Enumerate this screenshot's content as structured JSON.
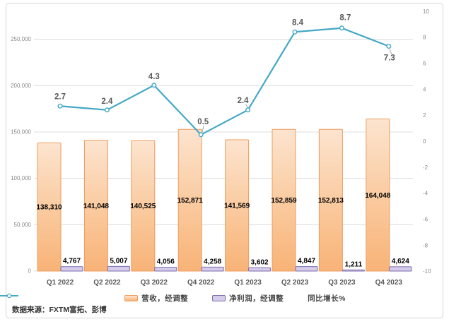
{
  "source_note": "数据来源：FXTM富拓、彭博",
  "colors": {
    "revenue_bar_top": "#fce4cf",
    "revenue_bar_bottom": "#f8b377",
    "revenue_bar_border": "#ee9c5e",
    "profit_bar_fill": "#d4ccea",
    "profit_bar_border": "#7d6dad",
    "yoy_line": "#44a8c6",
    "gridline": "#dcdcdc",
    "leader": "#a6a6a6",
    "frame_border": "#d6d6d6"
  },
  "chart_data": {
    "type": "bar",
    "subtype": "combo-bar-line",
    "grid": true,
    "legend_position": "bottom",
    "categories": [
      "Q1 2022",
      "Q2 2022",
      "Q3 2022",
      "Q4 2022",
      "Q1 2023",
      "Q2 2023",
      "Q3 2023",
      "Q4 2023"
    ],
    "series": [
      {
        "name": "营收，经调整",
        "type": "bar",
        "axis": "left",
        "values": [
          138310,
          141048,
          140525,
          152871,
          141569,
          152859,
          152813,
          164048
        ],
        "labels": [
          "138,310",
          "141,048",
          "140,525",
          "152,871",
          "141,569",
          "152,859",
          "152,813",
          "164,048"
        ]
      },
      {
        "name": "净利润，经调整",
        "type": "bar",
        "axis": "left",
        "values": [
          4767,
          5007,
          4056,
          4258,
          3602,
          4847,
          1211,
          4624
        ],
        "labels": [
          "4,767",
          "5,007",
          "4,056",
          "4,258",
          "3,602",
          "4,847",
          "1,211",
          "4,624"
        ]
      },
      {
        "name": "同比增长%",
        "type": "line",
        "axis": "right",
        "values": [
          2.7,
          2.4,
          4.3,
          0.5,
          2.4,
          8.4,
          8.7,
          7.3
        ],
        "labels": [
          "2.7",
          "2.4",
          "4.3",
          "0.5",
          "2.4",
          "8.4",
          "8.7",
          "7.3"
        ]
      }
    ],
    "left_axis": {
      "min": 0,
      "max": 280000,
      "tick_values": [
        0,
        50000,
        100000,
        150000,
        200000,
        250000
      ],
      "tick_labels": [
        "0",
        "50,000",
        "100,000",
        "150,000",
        "200,000",
        "250,000"
      ]
    },
    "right_axis": {
      "min": -10,
      "max": 10,
      "tick_values": [
        10,
        8,
        6,
        4,
        2,
        0,
        -2,
        -4,
        -6,
        -8,
        -10
      ],
      "tick_labels": [
        "10",
        "8",
        "6",
        "4",
        "2",
        "0",
        "-2",
        "-4",
        "-6",
        "-8",
        "-10"
      ]
    }
  }
}
